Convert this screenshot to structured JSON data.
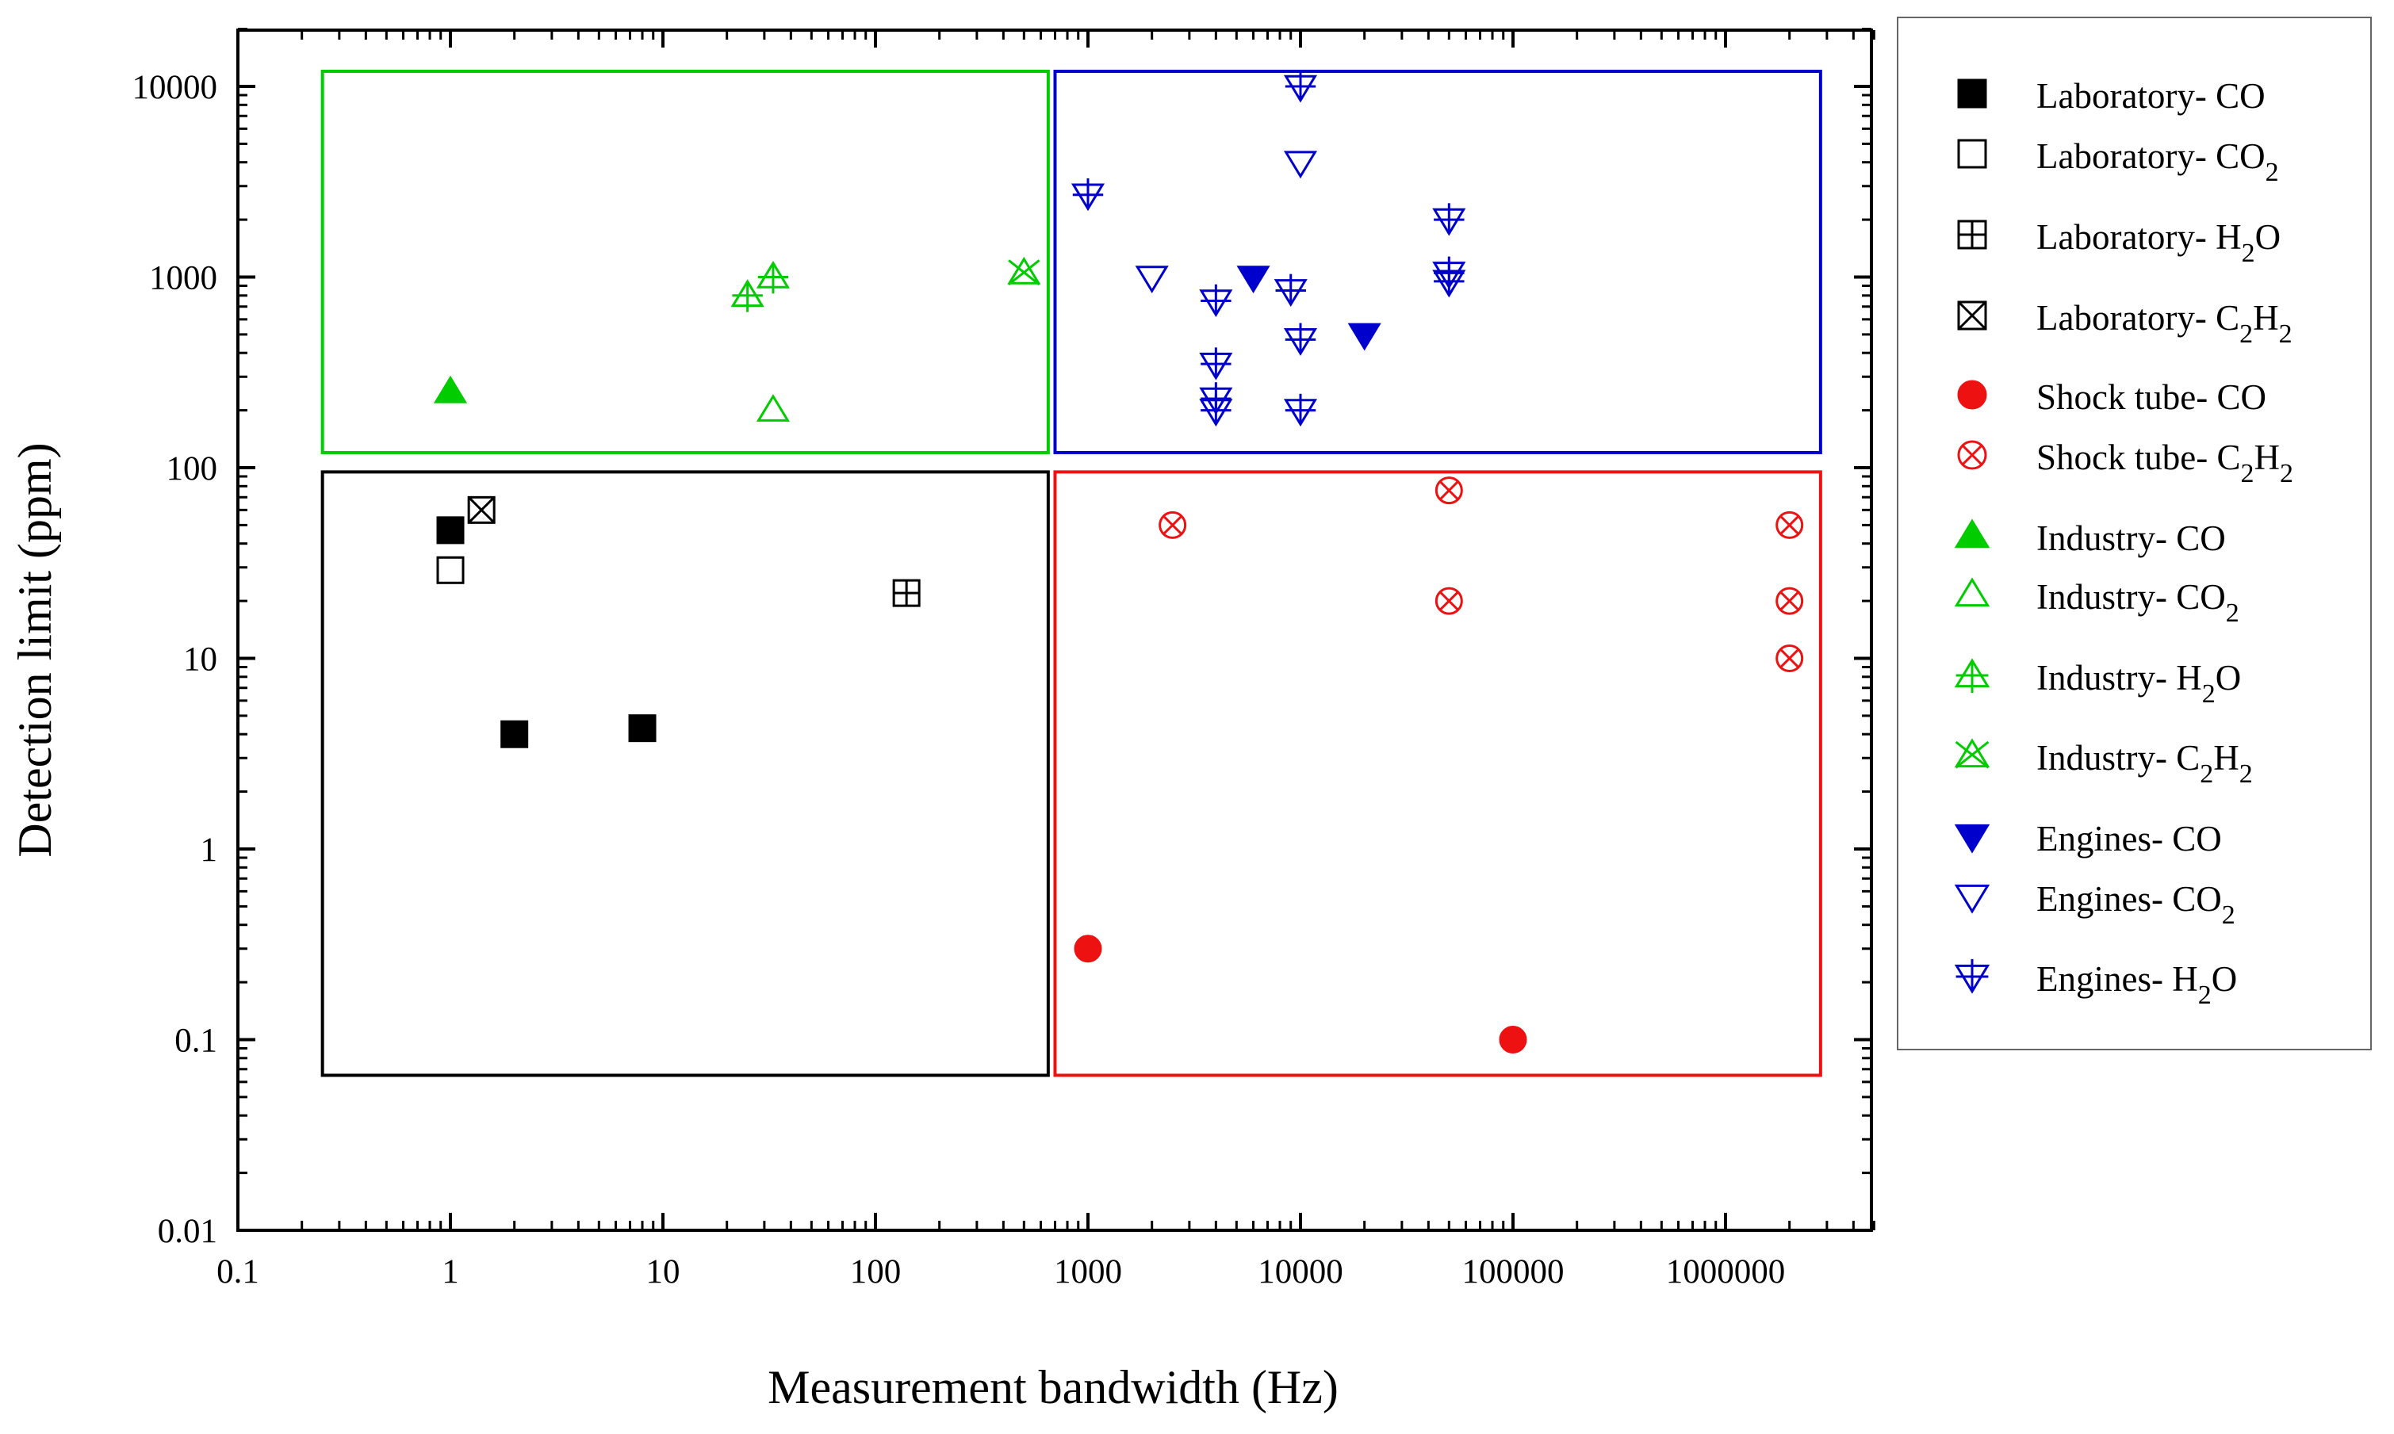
{
  "chart_data": {
    "type": "scatter",
    "title": "",
    "xlabel": "Measurement bandwidth (Hz)",
    "ylabel": "Detection limit (ppm)",
    "xscale": "log",
    "yscale": "log",
    "xlim": [
      0.1,
      5000000
    ],
    "ylim": [
      0.01,
      20000
    ],
    "xticks": [
      0.1,
      1,
      10,
      100,
      1000,
      10000,
      100000,
      1000000
    ],
    "xtick_labels": [
      "0.1",
      "1",
      "10",
      "100",
      "1000",
      "10000",
      "100000",
      "1000000"
    ],
    "yticks": [
      0.01,
      0.1,
      1,
      10,
      100,
      1000,
      10000
    ],
    "ytick_labels": [
      "0.01",
      "0.1",
      "1",
      "10",
      "100",
      "1000",
      "10000"
    ],
    "legend_position": "right, outside plot",
    "regions": [
      {
        "name": "Industry",
        "color": "#00cc00",
        "x": [
          0.25,
          650
        ],
        "y": [
          120,
          12000
        ]
      },
      {
        "name": "Engines",
        "color": "#0000cc",
        "x": [
          700,
          2800000
        ],
        "y": [
          120,
          12000
        ]
      },
      {
        "name": "Laboratory",
        "color": "#000000",
        "x": [
          0.25,
          650
        ],
        "y": [
          0.065,
          95
        ]
      },
      {
        "name": "Shock tube",
        "color": "#ee1111",
        "x": [
          700,
          2800000
        ],
        "y": [
          0.065,
          95
        ]
      }
    ],
    "series": [
      {
        "name": "Laboratory- CO",
        "label": "Laboratory- CO",
        "sub": "",
        "tail": "",
        "color": "#000000",
        "marker": "square-filled",
        "points": [
          [
            1,
            47
          ],
          [
            2,
            4
          ],
          [
            8,
            4.3
          ]
        ]
      },
      {
        "name": "Laboratory- CO2",
        "label": "Laboratory- CO",
        "sub": "2",
        "tail": "",
        "color": "#000000",
        "marker": "square-open",
        "points": [
          [
            1,
            29
          ]
        ]
      },
      {
        "name": "Laboratory- H2O",
        "label": "Laboratory- H",
        "sub": "2",
        "tail": "O",
        "color": "#000000",
        "marker": "square-plus",
        "points": [
          [
            140,
            22
          ]
        ]
      },
      {
        "name": "Laboratory- C2H2",
        "label": "Laboratory- C",
        "sub": "2",
        "tail": "H",
        "sub2": "2",
        "color": "#000000",
        "marker": "square-x",
        "points": [
          [
            1.4,
            60
          ]
        ]
      },
      {
        "name": "Shock tube- CO",
        "label": "Shock tube- CO",
        "sub": "",
        "tail": "",
        "color": "#ee1111",
        "marker": "circle-filled",
        "points": [
          [
            1000,
            0.3
          ],
          [
            100000,
            0.1
          ]
        ]
      },
      {
        "name": "Shock tube- C2H2",
        "label": "Shock tube- C",
        "sub": "2",
        "tail": "H",
        "sub2": "2",
        "color": "#ee1111",
        "marker": "circle-x",
        "points": [
          [
            2500,
            50
          ],
          [
            50000,
            76
          ],
          [
            50000,
            20
          ],
          [
            2000000,
            50
          ],
          [
            2000000,
            20
          ],
          [
            2000000,
            10
          ]
        ]
      },
      {
        "name": "Industry- CO",
        "label": "Industry- CO",
        "sub": "",
        "tail": "",
        "color": "#00cc00",
        "marker": "triangle-up-filled",
        "points": [
          [
            1,
            250
          ]
        ]
      },
      {
        "name": "Industry- CO2",
        "label": "Industry- CO",
        "sub": "2",
        "tail": "",
        "color": "#00cc00",
        "marker": "triangle-up-open",
        "points": [
          [
            33,
            200
          ]
        ]
      },
      {
        "name": "Industry- H2O",
        "label": "Industry- H",
        "sub": "2",
        "tail": "O",
        "color": "#00cc00",
        "marker": "triangle-up-plus",
        "points": [
          [
            25,
            800
          ],
          [
            33,
            1000
          ]
        ]
      },
      {
        "name": "Industry- C2H2",
        "label": "Industry- C",
        "sub": "2",
        "tail": "H",
        "sub2": "2",
        "color": "#00cc00",
        "marker": "triangle-up-x",
        "points": [
          [
            500,
            1050
          ]
        ]
      },
      {
        "name": "Engines- CO",
        "label": "Engines- CO",
        "sub": "",
        "tail": "",
        "color": "#0000cc",
        "marker": "triangle-down-filled",
        "points": [
          [
            6000,
            1000
          ],
          [
            20000,
            500
          ]
        ]
      },
      {
        "name": "Engines- CO2",
        "label": "Engines- CO",
        "sub": "2",
        "tail": "",
        "color": "#0000cc",
        "marker": "triangle-down-open",
        "points": [
          [
            2000,
            1000
          ],
          [
            10000,
            4000
          ]
        ]
      },
      {
        "name": "Engines- H2O",
        "label": "Engines- H",
        "sub": "2",
        "tail": "O",
        "color": "#0000cc",
        "marker": "triangle-down-plus",
        "points": [
          [
            1000,
            2700
          ],
          [
            4000,
            750
          ],
          [
            4000,
            350
          ],
          [
            4000,
            230
          ],
          [
            4000,
            200
          ],
          [
            9000,
            850
          ],
          [
            10000,
            10000
          ],
          [
            10000,
            470
          ],
          [
            10000,
            200
          ],
          [
            50000,
            2000
          ],
          [
            50000,
            1050
          ],
          [
            50000,
            950
          ]
        ]
      }
    ]
  }
}
